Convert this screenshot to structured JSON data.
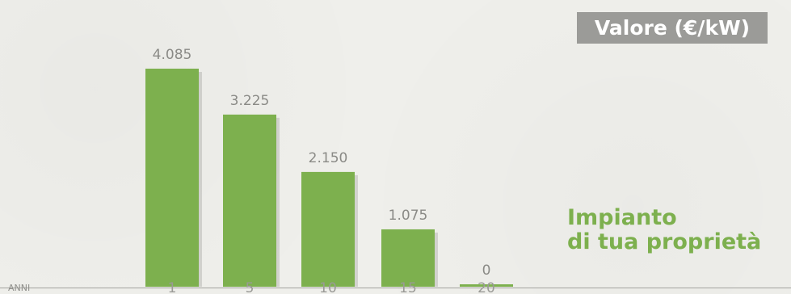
{
  "chart_data": {
    "type": "bar",
    "categories": [
      "1",
      "5",
      "10",
      "15",
      "20"
    ],
    "values": [
      4085,
      3225,
      2150,
      1075,
      0
    ],
    "value_labels": [
      "4.085",
      "3.225",
      "2.150",
      "1.075",
      "0"
    ],
    "title": "Valore (€/kW)",
    "xlabel": "ANNI",
    "ylabel": "",
    "ylim": [
      0,
      4085
    ],
    "annotation": [
      "Impianto",
      "di tua proprietà"
    ],
    "colors": {
      "bar": "#7db04e",
      "bar_shadow": "#5f8d35",
      "badge": "#9b9b98",
      "axis": "#a3a39f",
      "legend_text": "#7db04e"
    },
    "grid": false
  }
}
